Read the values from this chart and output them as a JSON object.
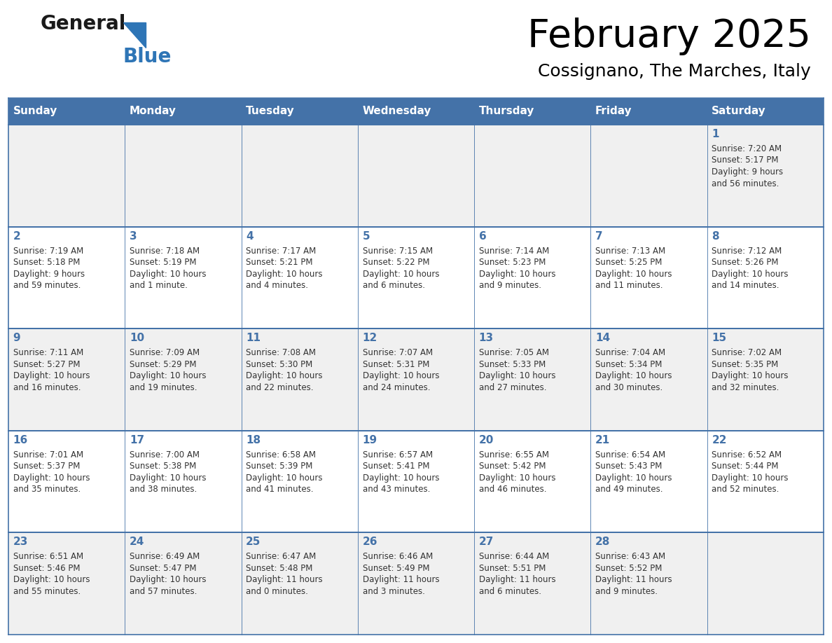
{
  "title": "February 2025",
  "subtitle": "Cossignano, The Marches, Italy",
  "days_of_week": [
    "Sunday",
    "Monday",
    "Tuesday",
    "Wednesday",
    "Thursday",
    "Friday",
    "Saturday"
  ],
  "header_bg": "#4472A8",
  "header_text_color": "#FFFFFF",
  "cell_bg_odd": "#F0F0F0",
  "cell_bg_even": "#FFFFFF",
  "cell_border_color": "#4472A8",
  "day_number_color": "#4472A8",
  "text_color": "#333333",
  "logo_general_color": "#1a1a1a",
  "logo_blue_color": "#2E75B6",
  "weeks": [
    [
      {
        "day": null,
        "info": null
      },
      {
        "day": null,
        "info": null
      },
      {
        "day": null,
        "info": null
      },
      {
        "day": null,
        "info": null
      },
      {
        "day": null,
        "info": null
      },
      {
        "day": null,
        "info": null
      },
      {
        "day": 1,
        "info": "Sunrise: 7:20 AM\nSunset: 5:17 PM\nDaylight: 9 hours\nand 56 minutes."
      }
    ],
    [
      {
        "day": 2,
        "info": "Sunrise: 7:19 AM\nSunset: 5:18 PM\nDaylight: 9 hours\nand 59 minutes."
      },
      {
        "day": 3,
        "info": "Sunrise: 7:18 AM\nSunset: 5:19 PM\nDaylight: 10 hours\nand 1 minute."
      },
      {
        "day": 4,
        "info": "Sunrise: 7:17 AM\nSunset: 5:21 PM\nDaylight: 10 hours\nand 4 minutes."
      },
      {
        "day": 5,
        "info": "Sunrise: 7:15 AM\nSunset: 5:22 PM\nDaylight: 10 hours\nand 6 minutes."
      },
      {
        "day": 6,
        "info": "Sunrise: 7:14 AM\nSunset: 5:23 PM\nDaylight: 10 hours\nand 9 minutes."
      },
      {
        "day": 7,
        "info": "Sunrise: 7:13 AM\nSunset: 5:25 PM\nDaylight: 10 hours\nand 11 minutes."
      },
      {
        "day": 8,
        "info": "Sunrise: 7:12 AM\nSunset: 5:26 PM\nDaylight: 10 hours\nand 14 minutes."
      }
    ],
    [
      {
        "day": 9,
        "info": "Sunrise: 7:11 AM\nSunset: 5:27 PM\nDaylight: 10 hours\nand 16 minutes."
      },
      {
        "day": 10,
        "info": "Sunrise: 7:09 AM\nSunset: 5:29 PM\nDaylight: 10 hours\nand 19 minutes."
      },
      {
        "day": 11,
        "info": "Sunrise: 7:08 AM\nSunset: 5:30 PM\nDaylight: 10 hours\nand 22 minutes."
      },
      {
        "day": 12,
        "info": "Sunrise: 7:07 AM\nSunset: 5:31 PM\nDaylight: 10 hours\nand 24 minutes."
      },
      {
        "day": 13,
        "info": "Sunrise: 7:05 AM\nSunset: 5:33 PM\nDaylight: 10 hours\nand 27 minutes."
      },
      {
        "day": 14,
        "info": "Sunrise: 7:04 AM\nSunset: 5:34 PM\nDaylight: 10 hours\nand 30 minutes."
      },
      {
        "day": 15,
        "info": "Sunrise: 7:02 AM\nSunset: 5:35 PM\nDaylight: 10 hours\nand 32 minutes."
      }
    ],
    [
      {
        "day": 16,
        "info": "Sunrise: 7:01 AM\nSunset: 5:37 PM\nDaylight: 10 hours\nand 35 minutes."
      },
      {
        "day": 17,
        "info": "Sunrise: 7:00 AM\nSunset: 5:38 PM\nDaylight: 10 hours\nand 38 minutes."
      },
      {
        "day": 18,
        "info": "Sunrise: 6:58 AM\nSunset: 5:39 PM\nDaylight: 10 hours\nand 41 minutes."
      },
      {
        "day": 19,
        "info": "Sunrise: 6:57 AM\nSunset: 5:41 PM\nDaylight: 10 hours\nand 43 minutes."
      },
      {
        "day": 20,
        "info": "Sunrise: 6:55 AM\nSunset: 5:42 PM\nDaylight: 10 hours\nand 46 minutes."
      },
      {
        "day": 21,
        "info": "Sunrise: 6:54 AM\nSunset: 5:43 PM\nDaylight: 10 hours\nand 49 minutes."
      },
      {
        "day": 22,
        "info": "Sunrise: 6:52 AM\nSunset: 5:44 PM\nDaylight: 10 hours\nand 52 minutes."
      }
    ],
    [
      {
        "day": 23,
        "info": "Sunrise: 6:51 AM\nSunset: 5:46 PM\nDaylight: 10 hours\nand 55 minutes."
      },
      {
        "day": 24,
        "info": "Sunrise: 6:49 AM\nSunset: 5:47 PM\nDaylight: 10 hours\nand 57 minutes."
      },
      {
        "day": 25,
        "info": "Sunrise: 6:47 AM\nSunset: 5:48 PM\nDaylight: 11 hours\nand 0 minutes."
      },
      {
        "day": 26,
        "info": "Sunrise: 6:46 AM\nSunset: 5:49 PM\nDaylight: 11 hours\nand 3 minutes."
      },
      {
        "day": 27,
        "info": "Sunrise: 6:44 AM\nSunset: 5:51 PM\nDaylight: 11 hours\nand 6 minutes."
      },
      {
        "day": 28,
        "info": "Sunrise: 6:43 AM\nSunset: 5:52 PM\nDaylight: 11 hours\nand 9 minutes."
      },
      {
        "day": null,
        "info": null
      }
    ]
  ],
  "fig_width": 11.88,
  "fig_height": 9.18,
  "dpi": 100
}
